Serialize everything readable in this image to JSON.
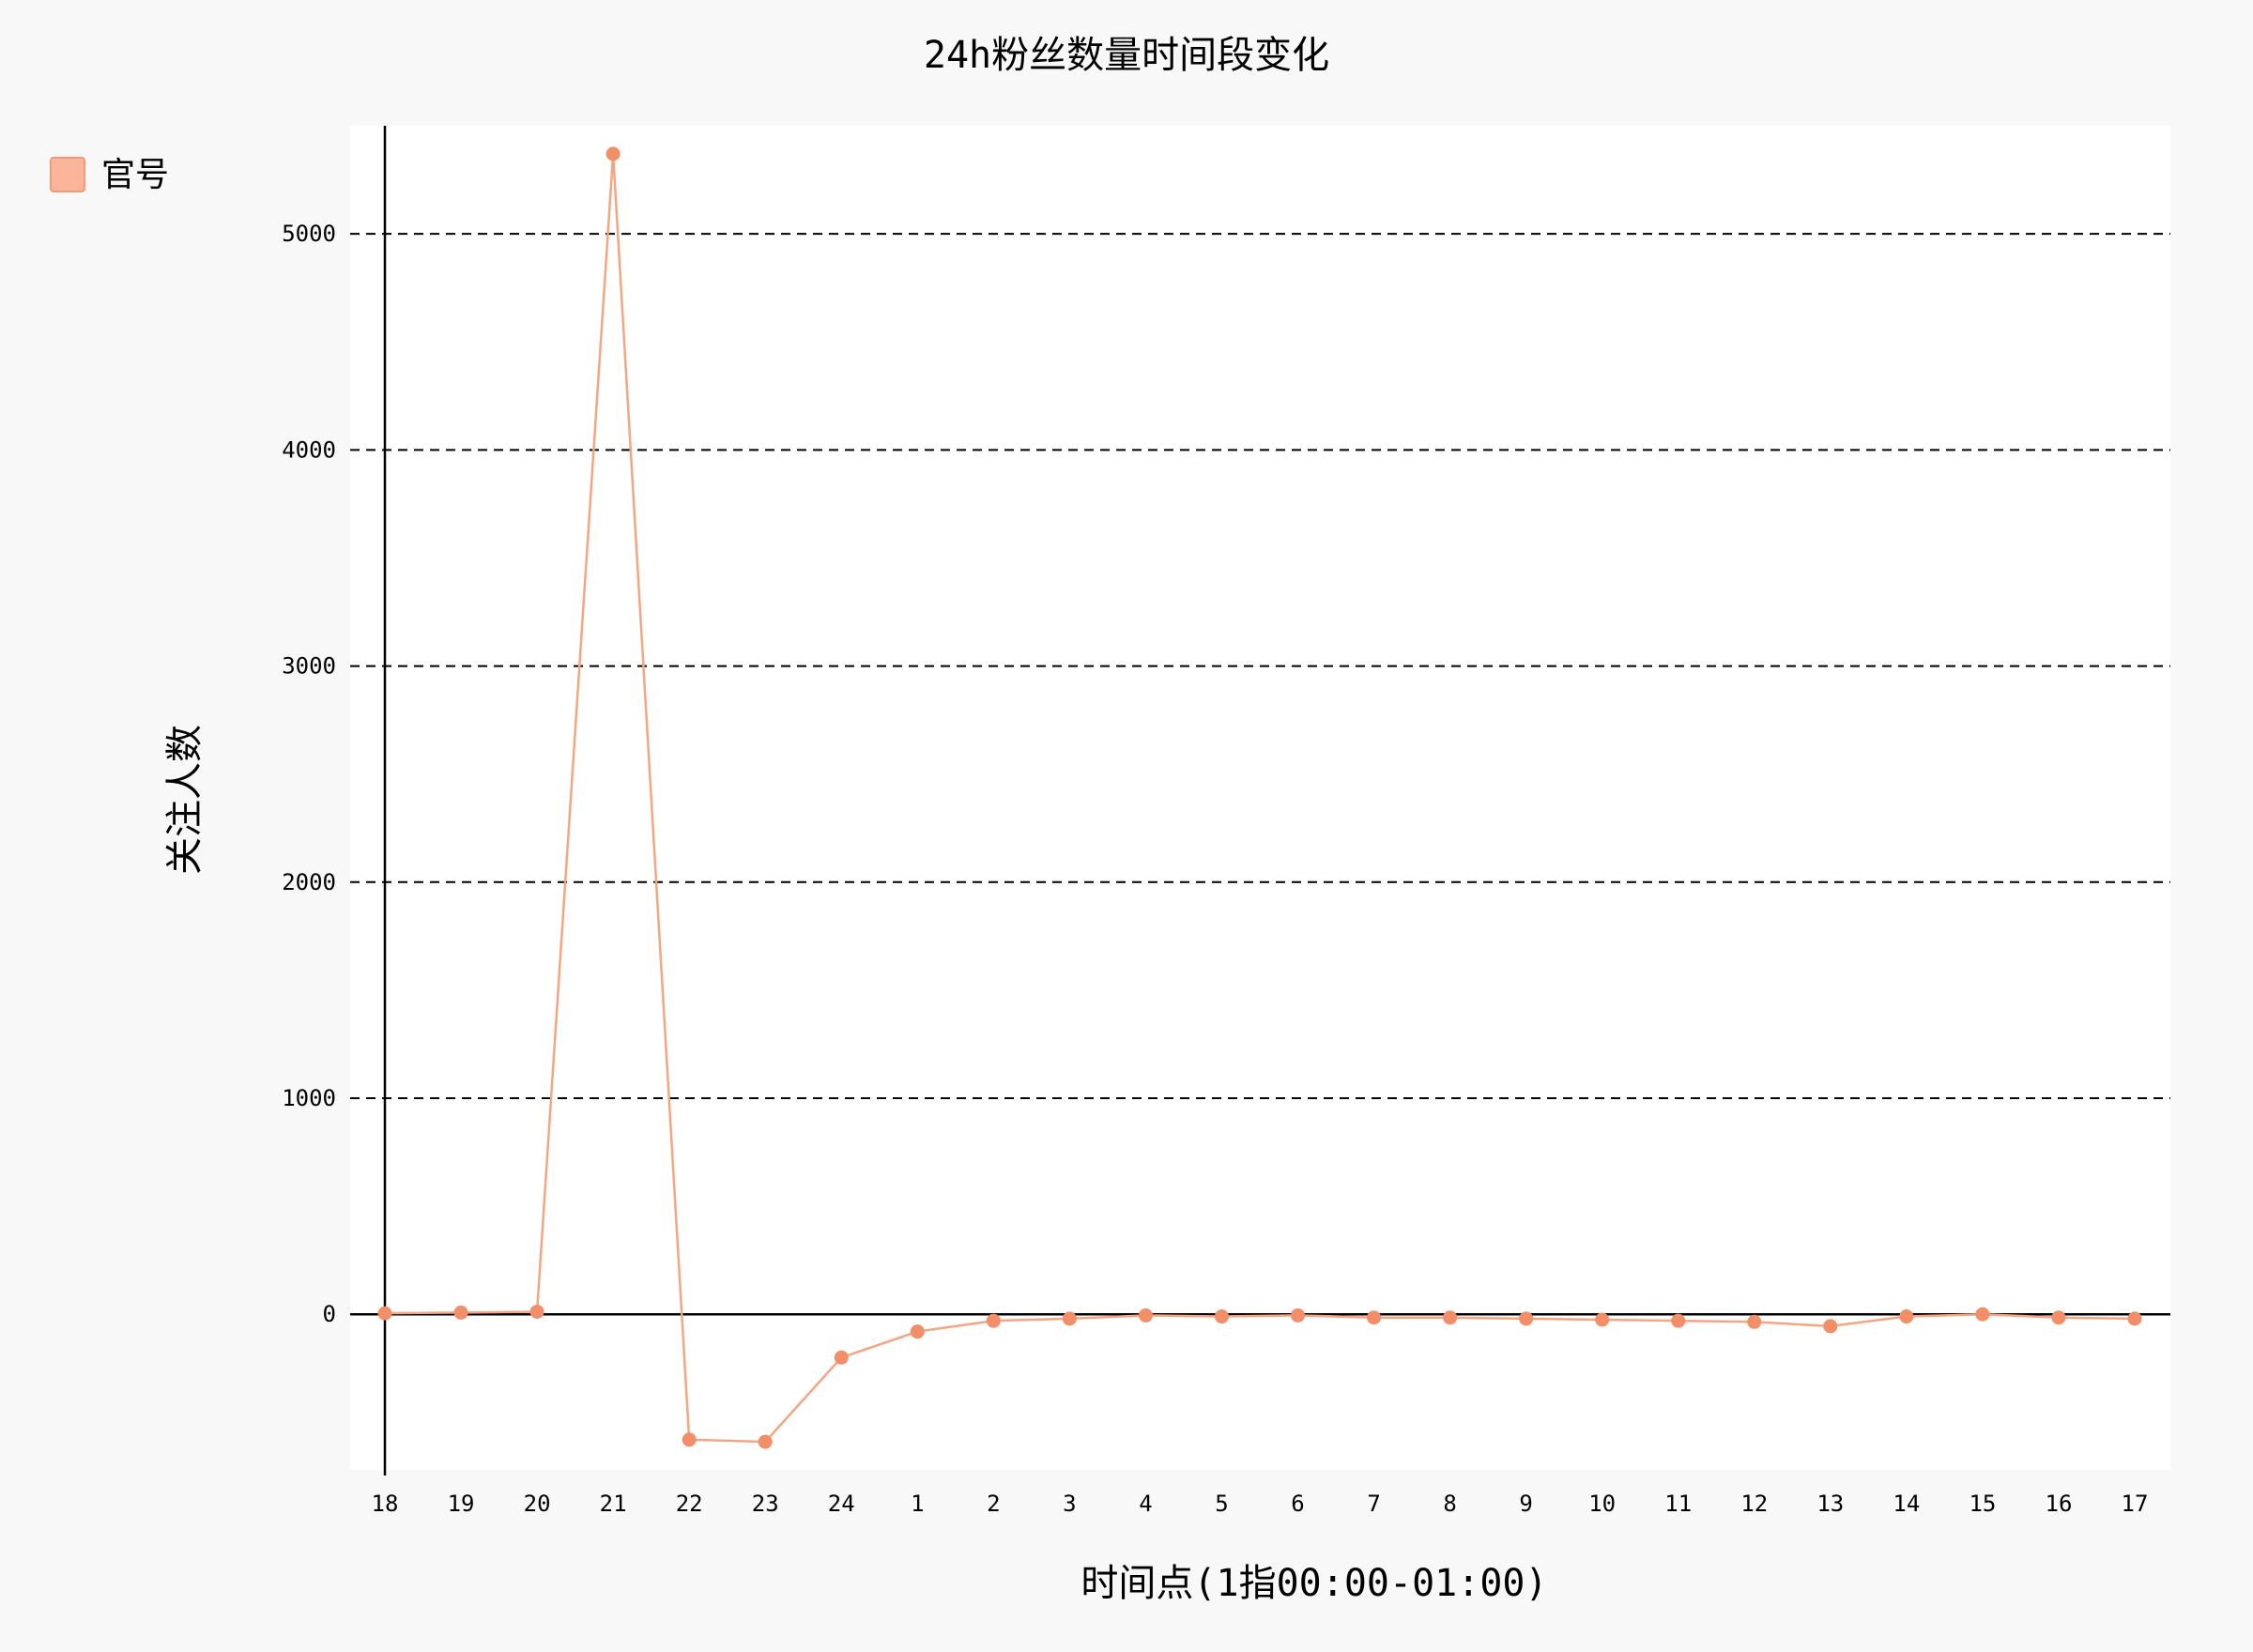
{
  "chart_data": {
    "type": "line",
    "title": "24h粉丝数量时间段变化",
    "xlabel": "时间点(1指00:00-01:00)",
    "ylabel": "关注人数",
    "categories": [
      "18",
      "19",
      "20",
      "21",
      "22",
      "23",
      "24",
      "1",
      "2",
      "3",
      "4",
      "5",
      "6",
      "7",
      "8",
      "9",
      "10",
      "11",
      "12",
      "13",
      "14",
      "15",
      "16",
      "17"
    ],
    "series": [
      {
        "name": "官号",
        "values": [
          5,
          8,
          12,
          5370,
          -580,
          -590,
          -200,
          -80,
          -30,
          -20,
          -5,
          -10,
          -5,
          -15,
          -15,
          -20,
          -25,
          -30,
          -35,
          -55,
          -10,
          0,
          -15,
          -20
        ]
      }
    ],
    "ylim": [
      -720,
      5500
    ],
    "yticks": [
      0,
      1000,
      2000,
      3000,
      4000,
      5000
    ],
    "grid": true,
    "legend_position": "top-left",
    "colors": {
      "series": "#f4a582",
      "marker": "#f28e68",
      "legend_swatch": "#fbb59a",
      "legend_border": "#f29a78",
      "plot_background": "#ffffff",
      "page_background": "#f8f8f8"
    }
  }
}
